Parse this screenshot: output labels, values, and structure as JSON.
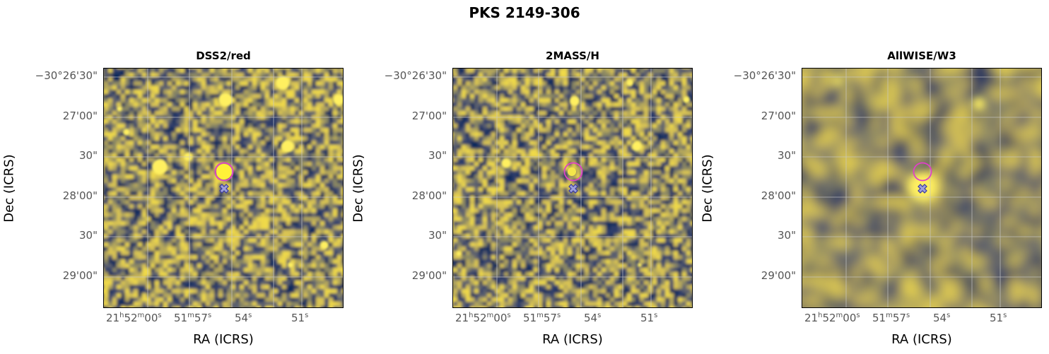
{
  "figure": {
    "title": "PKS 2149-306"
  },
  "colors": {
    "target_circle": "#e040c8",
    "crossmatch_marker": "#3a3aa0",
    "grid": "#c8c8c8"
  },
  "chart_data": [
    {
      "type": "heatmap",
      "title": "DSS2/red",
      "xlabel": "RA (ICRS)",
      "ylabel": "Dec (ICRS)",
      "xticks": [
        {
          "h": "21",
          "m": "52",
          "s": "00"
        },
        {
          "m": "51",
          "s": "57"
        },
        {
          "s": "54"
        },
        {
          "s": "51"
        }
      ],
      "yticks": [
        "−30°26'30\"",
        "27'00\"",
        "30\"",
        "28'00\"",
        "30\"",
        "29'00\""
      ],
      "markers": [
        {
          "kind": "circle",
          "label": "target",
          "ra_offset_s": 0.5,
          "dec_offset_arcsec": 0
        },
        {
          "kind": "cross",
          "label": "crossmatch",
          "ra_offset_s": 0.5,
          "dec_offset_arcsec": -11
        }
      ],
      "colormap": "cividis",
      "grid": true
    },
    {
      "type": "heatmap",
      "title": "2MASS/H",
      "xlabel": "RA (ICRS)",
      "ylabel": "Dec (ICRS)",
      "xticks": [
        {
          "h": "21",
          "m": "52",
          "s": "00"
        },
        {
          "m": "51",
          "s": "57"
        },
        {
          "s": "54"
        },
        {
          "s": "51"
        }
      ],
      "yticks": [
        "−30°26'30\"",
        "27'00\"",
        "30\"",
        "28'00\"",
        "30\"",
        "29'00\""
      ],
      "markers": [
        {
          "kind": "circle",
          "label": "target",
          "ra_offset_s": 0.5,
          "dec_offset_arcsec": 0
        },
        {
          "kind": "cross",
          "label": "crossmatch",
          "ra_offset_s": 0.5,
          "dec_offset_arcsec": -11
        }
      ],
      "colormap": "cividis",
      "grid": true
    },
    {
      "type": "heatmap",
      "title": "AllWISE/W3",
      "xlabel": "RA (ICRS)",
      "ylabel": "Dec (ICRS)",
      "xticks": [
        {
          "h": "21",
          "m": "52",
          "s": "00"
        },
        {
          "m": "51",
          "s": "57"
        },
        {
          "s": "54"
        },
        {
          "s": "51"
        }
      ],
      "yticks": [
        "−30°26'30\"",
        "27'00\"",
        "30\"",
        "28'00\"",
        "30\"",
        "29'00\""
      ],
      "markers": [
        {
          "kind": "circle",
          "label": "target",
          "ra_offset_s": 0.5,
          "dec_offset_arcsec": 0
        },
        {
          "kind": "cross",
          "label": "crossmatch",
          "ra_offset_s": 0.5,
          "dec_offset_arcsec": -11
        }
      ],
      "colormap": "cividis",
      "grid": true
    }
  ]
}
